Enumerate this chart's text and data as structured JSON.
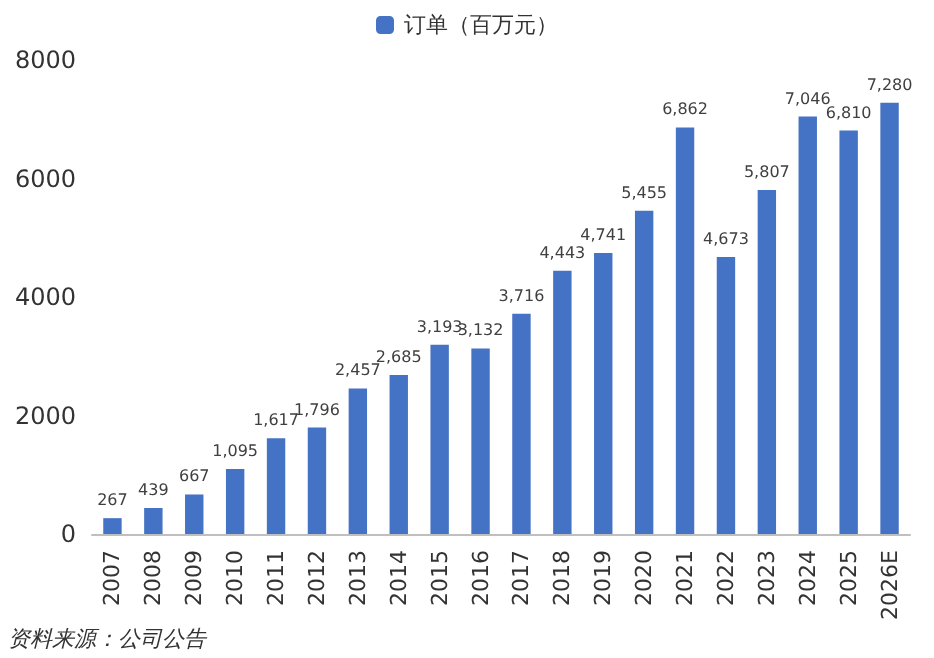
{
  "chart_data": {
    "type": "bar",
    "categories": [
      "2007",
      "2008",
      "2009",
      "2010",
      "2011",
      "2012",
      "2013",
      "2014",
      "2015",
      "2016",
      "2017",
      "2018",
      "2019",
      "2020",
      "2021",
      "2022",
      "2023",
      "2024",
      "2025",
      "2026E"
    ],
    "series": [
      {
        "name": "订单（百万元）",
        "color": "#4472c4",
        "values": [
          267,
          439,
          667,
          1095,
          1617,
          1796,
          2457,
          2685,
          3193,
          3132,
          3716,
          4443,
          4741,
          5455,
          6862,
          4673,
          5807,
          7046,
          6810,
          7280
        ],
        "value_labels": [
          "267",
          "439",
          "667",
          "1,095",
          "1,617",
          "1,796",
          "2,457",
          "2,685",
          "3,193",
          "3,132",
          "3,716",
          "4,443",
          "4,741",
          "5,455",
          "6,862",
          "4,673",
          "5,807",
          "7,046",
          "6,810",
          "7,280"
        ]
      }
    ],
    "ylim": [
      0,
      8000
    ],
    "yticks": [
      0,
      2000,
      4000,
      6000,
      8000
    ],
    "grid": false,
    "legend": "top",
    "annotations": [
      "资料来源：公司公告"
    ]
  }
}
